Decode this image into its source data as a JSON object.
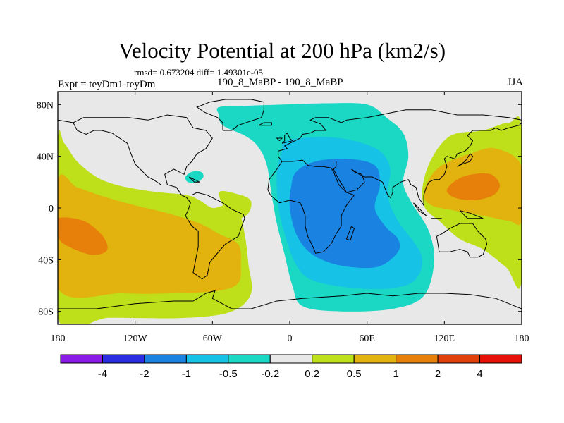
{
  "chart_data": {
    "type": "heatmap",
    "title": "Velocity Potential at 200 hPa (km2/s)",
    "stats_text": "rmsd= 0.673204 diff= 1.49301e-05",
    "left_label": "Expt = teyDm1-teyDm",
    "center_label": "190_8_MaBP - 190_8_MaBP",
    "right_label": "JJA",
    "x_ticks": [
      "180",
      "120W",
      "60W",
      "0",
      "60E",
      "120E",
      "180"
    ],
    "x_tick_values": [
      -180,
      -120,
      -60,
      0,
      60,
      120,
      180
    ],
    "y_ticks": [
      "80N",
      "40N",
      "0",
      "40S",
      "80S"
    ],
    "y_tick_values": [
      80,
      40,
      0,
      -40,
      -80
    ],
    "xlim": [
      -180,
      180
    ],
    "ylim": [
      -90,
      90
    ],
    "colorbar": {
      "colors": [
        "#8a1ae6",
        "#2a2ee0",
        "#1a82e0",
        "#16c2e6",
        "#1ad8c4",
        "#e8e8e8",
        "#bde01a",
        "#e2b20e",
        "#e6800a",
        "#e0400a",
        "#e6120a"
      ],
      "labels": [
        "-4",
        "-2",
        "-1",
        "-0.5",
        "-0.2",
        "0.2",
        "0.5",
        "1",
        "2",
        "4"
      ],
      "levels": [
        -4,
        -2,
        -1,
        -0.5,
        -0.2,
        0.2,
        0.5,
        1,
        2,
        4
      ]
    },
    "fields": [
      {
        "name": "western-positive",
        "level": 0.2,
        "points": [
          [
            -180,
            50
          ],
          [
            -175,
            50
          ],
          [
            -165,
            36
          ],
          [
            -150,
            24
          ],
          [
            -135,
            18
          ],
          [
            -115,
            14
          ],
          [
            -100,
            12
          ],
          [
            -80,
            10
          ],
          [
            -70,
            6
          ],
          [
            -60,
            0
          ],
          [
            -50,
            2
          ],
          [
            -40,
            -2
          ],
          [
            -35,
            -20
          ],
          [
            -32,
            -44
          ],
          [
            -30,
            -66
          ],
          [
            -45,
            -80
          ],
          [
            -80,
            -85
          ],
          [
            -140,
            -85
          ],
          [
            -180,
            -85
          ]
        ]
      },
      {
        "name": "western-positive",
        "level": 0.5,
        "points": [
          [
            -180,
            21
          ],
          [
            -165,
            16
          ],
          [
            -145,
            9
          ],
          [
            -120,
            2
          ],
          [
            -95,
            -4
          ],
          [
            -70,
            -12
          ],
          [
            -55,
            -20
          ],
          [
            -40,
            -28
          ],
          [
            -38,
            -44
          ],
          [
            -40,
            -58
          ],
          [
            -55,
            -64
          ],
          [
            -90,
            -66
          ],
          [
            -130,
            -66
          ],
          [
            -180,
            -62
          ]
        ]
      },
      {
        "name": "western-positive",
        "level": 1,
        "points": [
          [
            -180,
            -8
          ],
          [
            -160,
            -10
          ],
          [
            -145,
            -22
          ],
          [
            -142,
            -33
          ],
          [
            -155,
            -36
          ],
          [
            -175,
            -28
          ],
          [
            -180,
            -20
          ]
        ]
      },
      {
        "name": "western-positive",
        "level": 0.2,
        "points": [
          [
            -55,
            12
          ],
          [
            -38,
            10
          ],
          [
            -30,
            5
          ],
          [
            -33,
            -5
          ],
          [
            -45,
            -8
          ]
        ]
      },
      {
        "name": "eastern-positive",
        "level": 0.2,
        "points": [
          [
            180,
            60
          ],
          [
            170,
            66
          ],
          [
            150,
            60
          ],
          [
            125,
            56
          ],
          [
            110,
            38
          ],
          [
            103,
            16
          ],
          [
            105,
            0
          ],
          [
            116,
            -10
          ],
          [
            132,
            -24
          ],
          [
            150,
            -32
          ],
          [
            168,
            -46
          ],
          [
            180,
            -56
          ]
        ]
      },
      {
        "name": "eastern-positive",
        "level": 0.5,
        "points": [
          [
            180,
            32
          ],
          [
            160,
            46
          ],
          [
            140,
            42
          ],
          [
            118,
            33
          ],
          [
            108,
            22
          ],
          [
            104,
            10
          ],
          [
            110,
            2
          ],
          [
            128,
            -2
          ],
          [
            150,
            -6
          ],
          [
            170,
            -10
          ],
          [
            180,
            -10
          ]
        ]
      },
      {
        "name": "eastern-positive",
        "level": 1,
        "points": [
          [
            130,
            22
          ],
          [
            142,
            26
          ],
          [
            156,
            26
          ],
          [
            163,
            18
          ],
          [
            158,
            10
          ],
          [
            143,
            6
          ],
          [
            128,
            8
          ],
          [
            122,
            14
          ]
        ]
      },
      {
        "name": "negative-center",
        "level": -0.2,
        "points": [
          [
            -55,
            78
          ],
          [
            -35,
            79
          ],
          [
            -5,
            80
          ],
          [
            30,
            81
          ],
          [
            60,
            80
          ],
          [
            75,
            70
          ],
          [
            88,
            58
          ],
          [
            92,
            40
          ],
          [
            88,
            20
          ],
          [
            94,
            5
          ],
          [
            108,
            -18
          ],
          [
            112,
            -42
          ],
          [
            104,
            -68
          ],
          [
            80,
            -78
          ],
          [
            40,
            -80
          ],
          [
            10,
            -76
          ],
          [
            2,
            -60
          ],
          [
            -4,
            -36
          ],
          [
            -10,
            -12
          ],
          [
            -14,
            10
          ],
          [
            -18,
            34
          ],
          [
            -25,
            48
          ],
          [
            -35,
            56
          ],
          [
            -52,
            64
          ],
          [
            -55,
            72
          ]
        ]
      },
      {
        "name": "negative-center",
        "level": -0.5,
        "points": [
          [
            -3,
            52
          ],
          [
            25,
            55
          ],
          [
            50,
            52
          ],
          [
            70,
            44
          ],
          [
            78,
            30
          ],
          [
            76,
            10
          ],
          [
            84,
            -10
          ],
          [
            102,
            -36
          ],
          [
            98,
            -55
          ],
          [
            80,
            -62
          ],
          [
            50,
            -62
          ],
          [
            18,
            -56
          ],
          [
            5,
            -44
          ],
          [
            -4,
            -20
          ],
          [
            -9,
            2
          ],
          [
            -10,
            28
          ],
          [
            -6,
            44
          ]
        ]
      },
      {
        "name": "negative-center",
        "level": -1,
        "points": [
          [
            5,
            28
          ],
          [
            20,
            36
          ],
          [
            45,
            38
          ],
          [
            66,
            33
          ],
          [
            70,
            18
          ],
          [
            66,
            0
          ],
          [
            74,
            -14
          ],
          [
            84,
            -24
          ],
          [
            84,
            -34
          ],
          [
            70,
            -45
          ],
          [
            50,
            -46
          ],
          [
            30,
            -42
          ],
          [
            15,
            -34
          ],
          [
            5,
            -20
          ],
          [
            0,
            0
          ],
          [
            1,
            16
          ]
        ]
      },
      {
        "name": "north-pacific-small",
        "level": -0.2,
        "points": [
          [
            -76,
            28
          ],
          [
            -69,
            28
          ],
          [
            -67,
            24
          ],
          [
            -72,
            20
          ],
          [
            -79,
            20
          ],
          [
            -81,
            24
          ]
        ]
      }
    ]
  }
}
